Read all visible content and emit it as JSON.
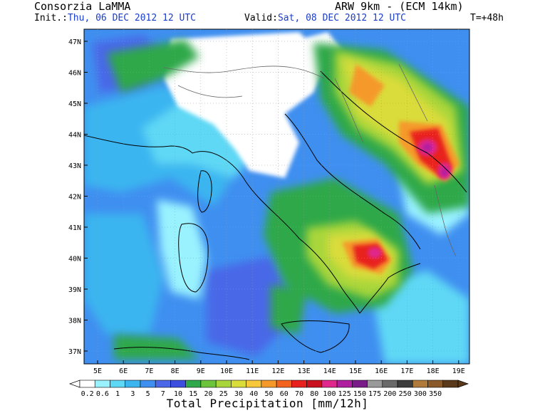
{
  "header": {
    "org": "Consorzia LaMMA",
    "model": "ARW 9km - (ECM 14km)",
    "init_label": "Init.:",
    "init_value": "Thu, 06 DEC 2012  12 UTC",
    "valid_label": "Valid:",
    "valid_value": "Sat, 08 DEC 2012  12 UTC",
    "lead": "T=+48h"
  },
  "axes": {
    "lat_labels": [
      "47N",
      "46N",
      "45N",
      "44N",
      "43N",
      "42N",
      "41N",
      "40N",
      "39N",
      "38N",
      "37N"
    ],
    "lon_labels": [
      "5E",
      "6E",
      "7E",
      "8E",
      "9E",
      "10E",
      "11E",
      "12E",
      "13E",
      "14E",
      "15E",
      "16E",
      "17E",
      "18E",
      "19E"
    ]
  },
  "colorbar": {
    "title": "Total Precipitation [mm/12h]",
    "levels": [
      "0.2",
      "0.6",
      "1",
      "3",
      "5",
      "7",
      "10",
      "15",
      "20",
      "25",
      "30",
      "40",
      "50",
      "60",
      "70",
      "80",
      "100",
      "125",
      "150",
      "175",
      "200",
      "250",
      "300",
      "350"
    ],
    "colors": [
      "#ffffff",
      "#9af2ff",
      "#5fd8f5",
      "#3ab5f0",
      "#3f8ff0",
      "#4a68e8",
      "#3b4ee0",
      "#2ea84a",
      "#6cc43a",
      "#a8d63a",
      "#dadc3a",
      "#f7c83a",
      "#f59a2a",
      "#f2641e",
      "#e8201e",
      "#c8101e",
      "#e0288c",
      "#b01ea0",
      "#7a1b8a",
      "#9a9a9a",
      "#6a6a6a",
      "#3c3c3c",
      "#b07a3a",
      "#8a5a2a",
      "#5a3a1a"
    ]
  },
  "map_colors": {
    "land_dry": "#ffffff",
    "light": "#9af2ff",
    "cyan": "#5fd8f5",
    "sky": "#3ab5f0",
    "blue": "#3f8ff0",
    "indigo": "#4a68e8",
    "green": "#2ea84a",
    "lime": "#a8d63a",
    "yellow": "#dadc3a",
    "orange": "#f59a2a",
    "red": "#e8201e",
    "magenta": "#e0288c",
    "violet": "#b01ea0"
  }
}
